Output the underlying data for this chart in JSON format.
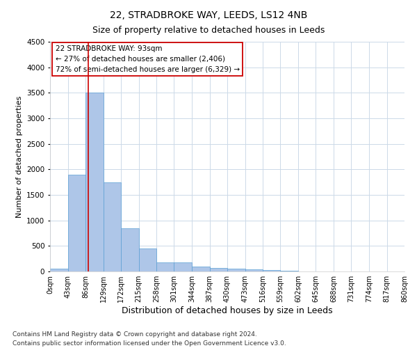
{
  "title": "22, STRADBROKE WAY, LEEDS, LS12 4NB",
  "subtitle": "Size of property relative to detached houses in Leeds",
  "xlabel": "Distribution of detached houses by size in Leeds",
  "ylabel": "Number of detached properties",
  "bin_edges": [
    0,
    43,
    86,
    129,
    172,
    215,
    258,
    301,
    344,
    387,
    430,
    473,
    516,
    559,
    602,
    645,
    688,
    731,
    774,
    817,
    860
  ],
  "bar_heights": [
    50,
    1900,
    3500,
    1750,
    850,
    450,
    175,
    175,
    100,
    65,
    55,
    35,
    25,
    10,
    5,
    5,
    5,
    5,
    3,
    3
  ],
  "bar_color": "#aec6e8",
  "bar_edge_color": "#5a9fd4",
  "red_line_x": 93,
  "red_line_color": "#cc0000",
  "annotation_line1": "22 STRADBROKE WAY: 93sqm",
  "annotation_line2": "← 27% of detached houses are smaller (2,406)",
  "annotation_line3": "72% of semi-detached houses are larger (6,329) →",
  "annotation_box_color": "#ffffff",
  "annotation_box_edge": "#cc0000",
  "ylim": [
    0,
    4500
  ],
  "yticks": [
    0,
    500,
    1000,
    1500,
    2000,
    2500,
    3000,
    3500,
    4000,
    4500
  ],
  "footer_line1": "Contains HM Land Registry data © Crown copyright and database right 2024.",
  "footer_line2": "Contains public sector information licensed under the Open Government Licence v3.0.",
  "background_color": "#ffffff",
  "grid_color": "#ccd9e8",
  "title_fontsize": 10,
  "subtitle_fontsize": 9,
  "ylabel_fontsize": 8,
  "xlabel_fontsize": 9,
  "tick_label_fontsize": 7,
  "annotation_fontsize": 7.5,
  "footer_fontsize": 6.5
}
